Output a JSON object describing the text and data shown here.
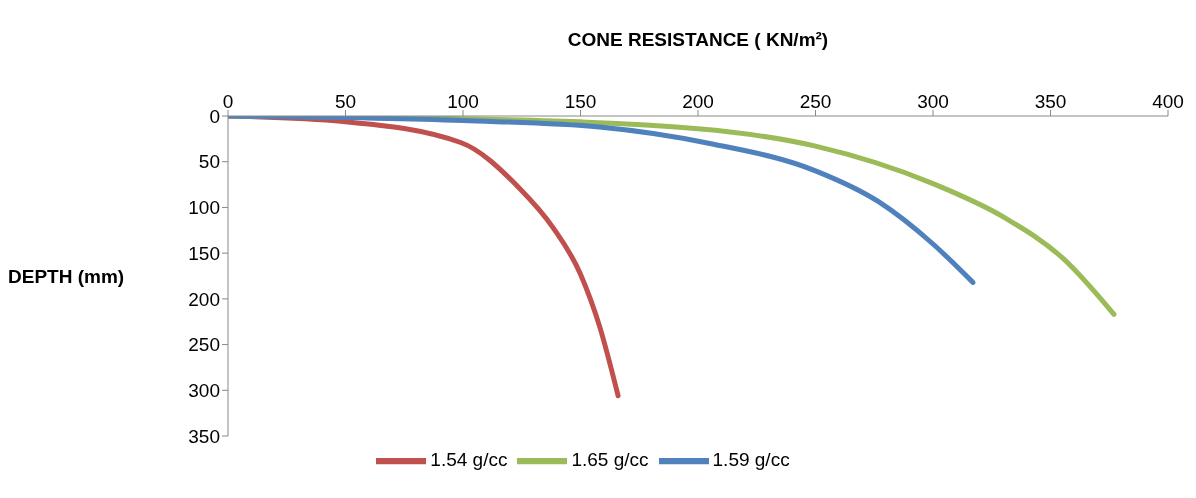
{
  "chart_data": {
    "type": "line",
    "xlabel": "CONE RESISTANCE ( KN/m²)",
    "ylabel": "DEPTH (mm)",
    "xlim": [
      0,
      400
    ],
    "xticks": [
      0,
      50,
      100,
      150,
      200,
      250,
      300,
      350,
      400
    ],
    "ylim": [
      350,
      0
    ],
    "yticks": [
      0,
      50,
      100,
      150,
      200,
      250,
      300,
      350
    ],
    "grid": false,
    "legend": "bottom",
    "marker": "none",
    "line_style": "solid",
    "series": [
      {
        "name": "1.54 g/cc",
        "color": "#c0504d",
        "x": [
          0,
          49,
          99,
          124,
          138,
          150,
          158,
          166
        ],
        "values": [
          0,
          6,
          29,
          79,
          121,
          173,
          229,
          306
        ]
      },
      {
        "name": "1.65 g/cc",
        "color": "#9bbb59",
        "x": [
          0,
          100,
          200,
          250,
          300,
          331,
          355,
          377
        ],
        "values": [
          0,
          3,
          14,
          33,
          74,
          112,
          155,
          217
        ]
      },
      {
        "name": "1.59 g/cc",
        "color": "#4f81bd",
        "x": [
          0,
          100,
          158,
          205,
          250,
          277,
          300,
          317
        ],
        "values": [
          0,
          5,
          12,
          30,
          60,
          94,
          140,
          182
        ]
      }
    ]
  }
}
